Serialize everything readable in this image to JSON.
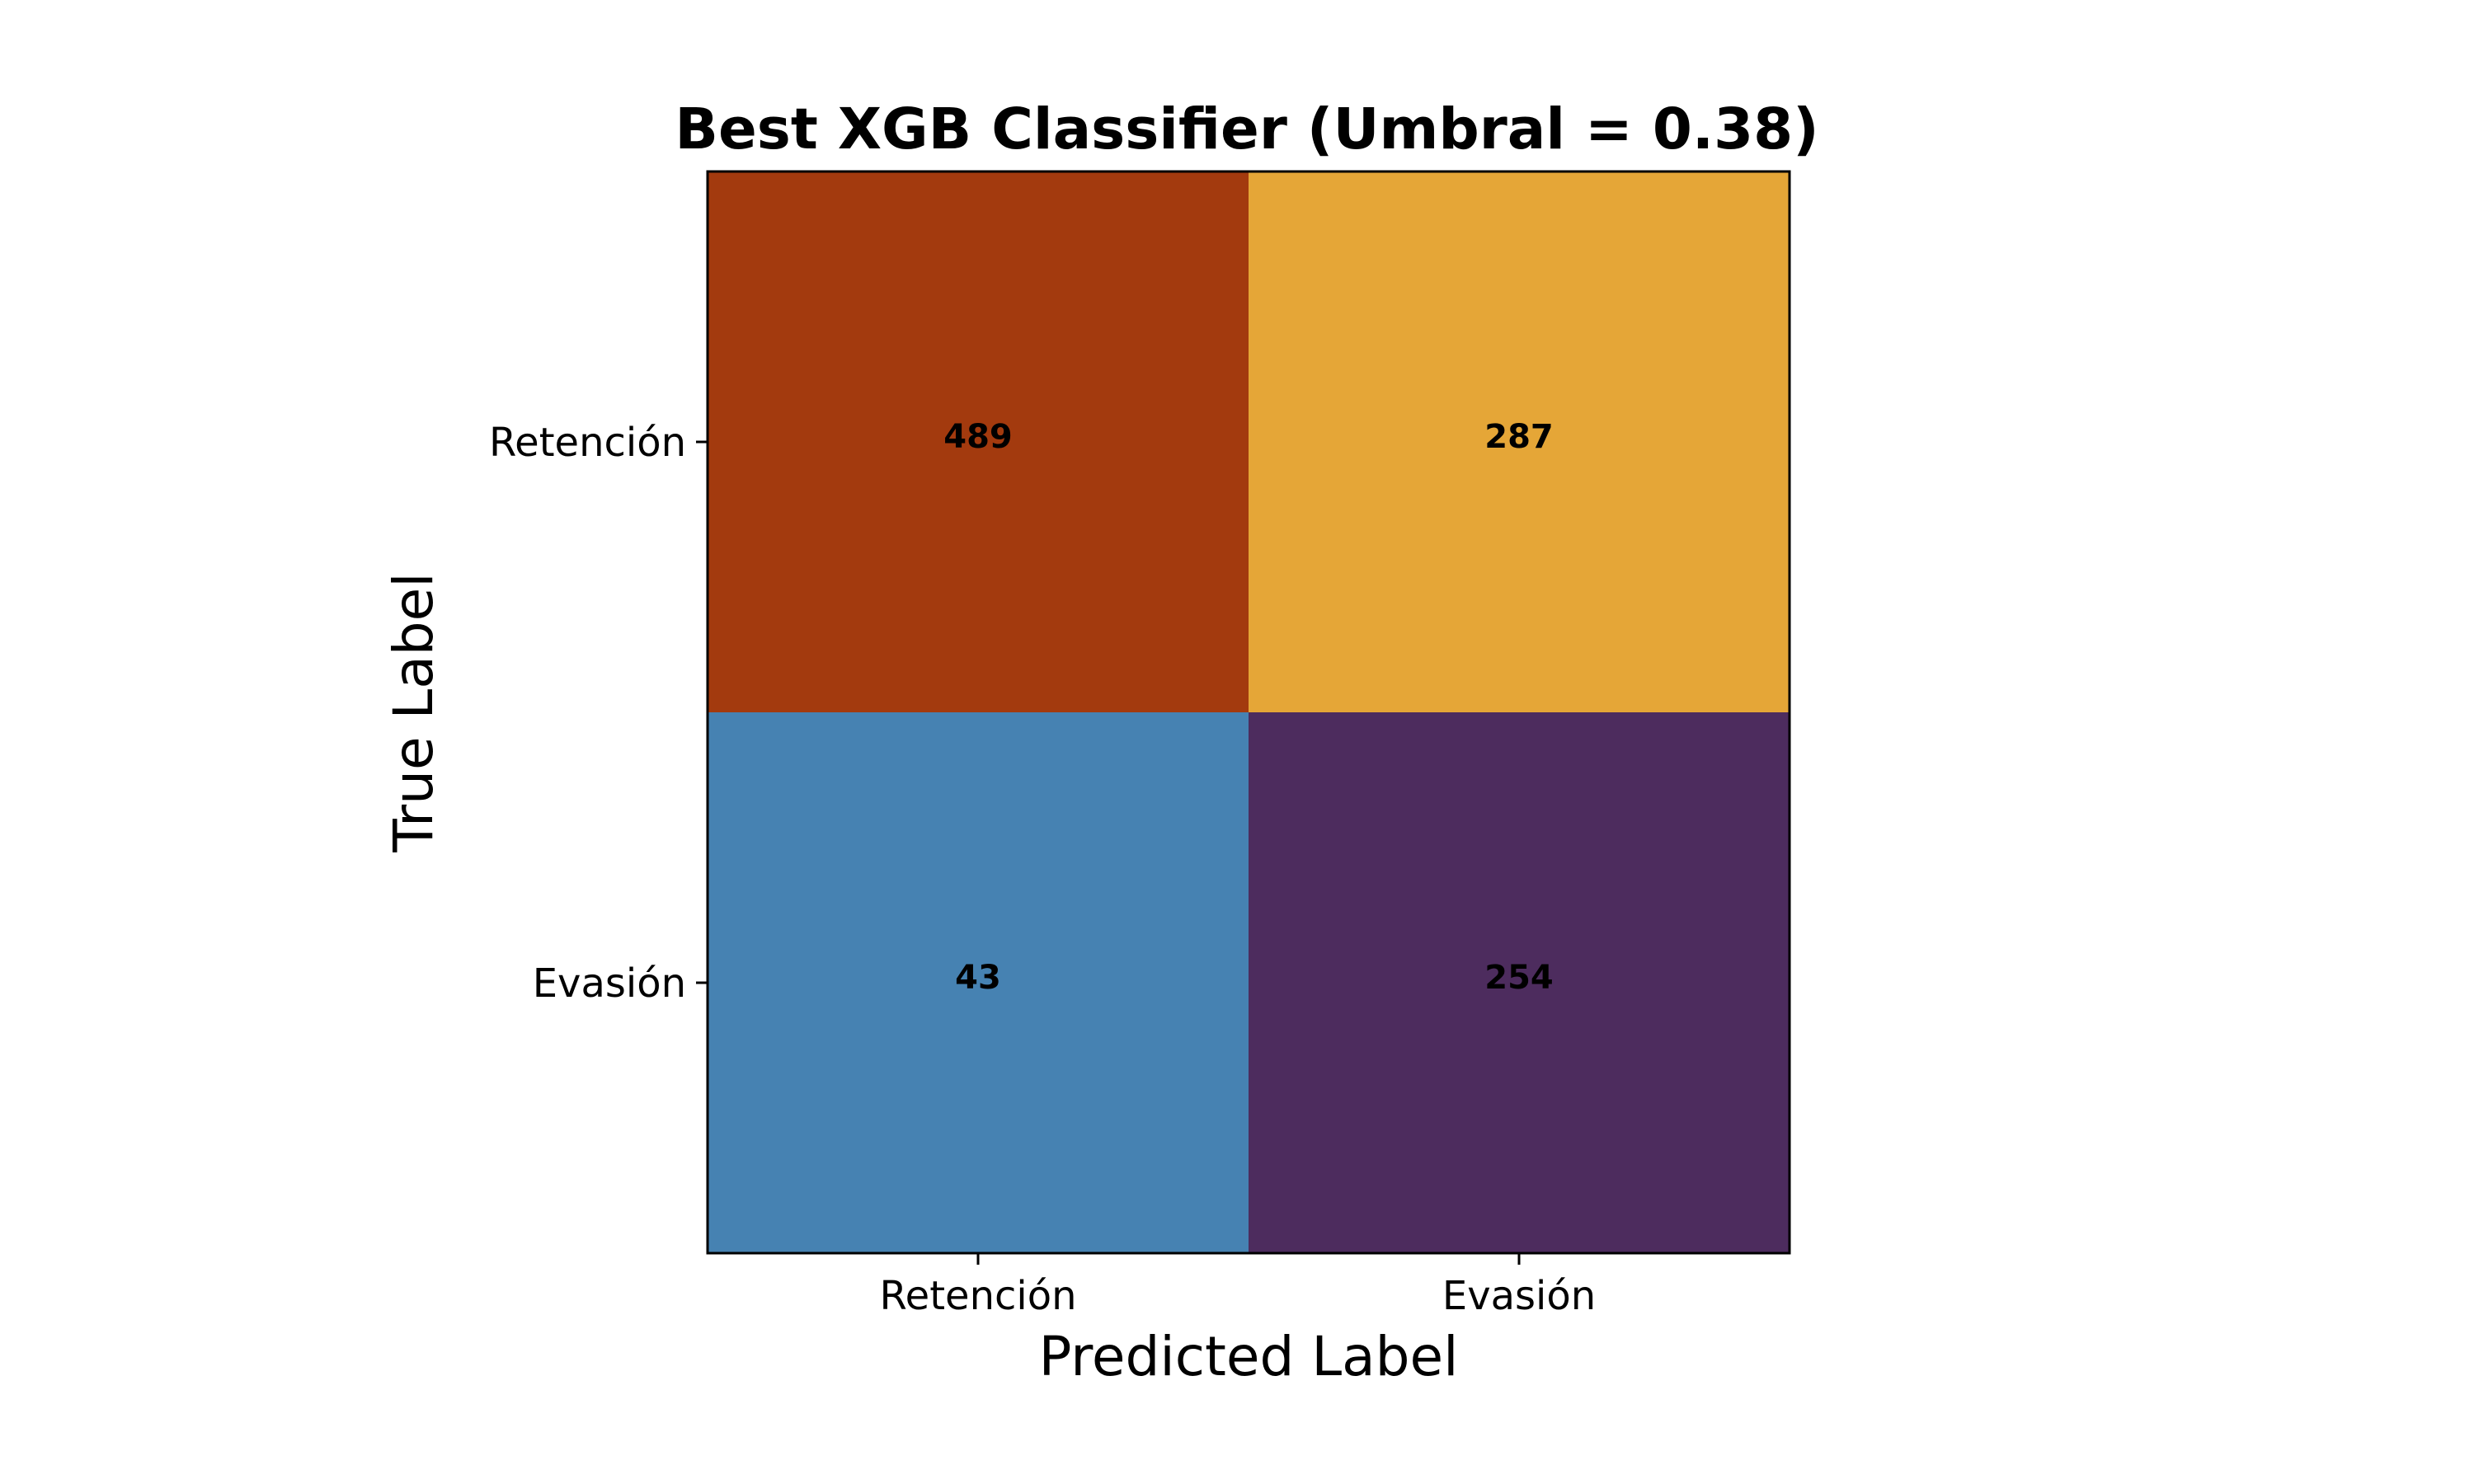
{
  "chart_data": {
    "type": "heatmap",
    "title": "Best XGB Classifier (Umbral = 0.38)",
    "xlabel": "Predicted Label",
    "ylabel": "True Label",
    "x_categories": [
      "Retención",
      "Evasión"
    ],
    "y_categories": [
      "Retención",
      "Evasión"
    ],
    "matrix": [
      [
        489,
        287
      ],
      [
        43,
        254
      ]
    ],
    "cell_colors": [
      [
        "#A33A0E",
        "#E5A637"
      ],
      [
        "#4682B2",
        "#4D2C5E"
      ]
    ],
    "grid": false,
    "legend": "none"
  }
}
